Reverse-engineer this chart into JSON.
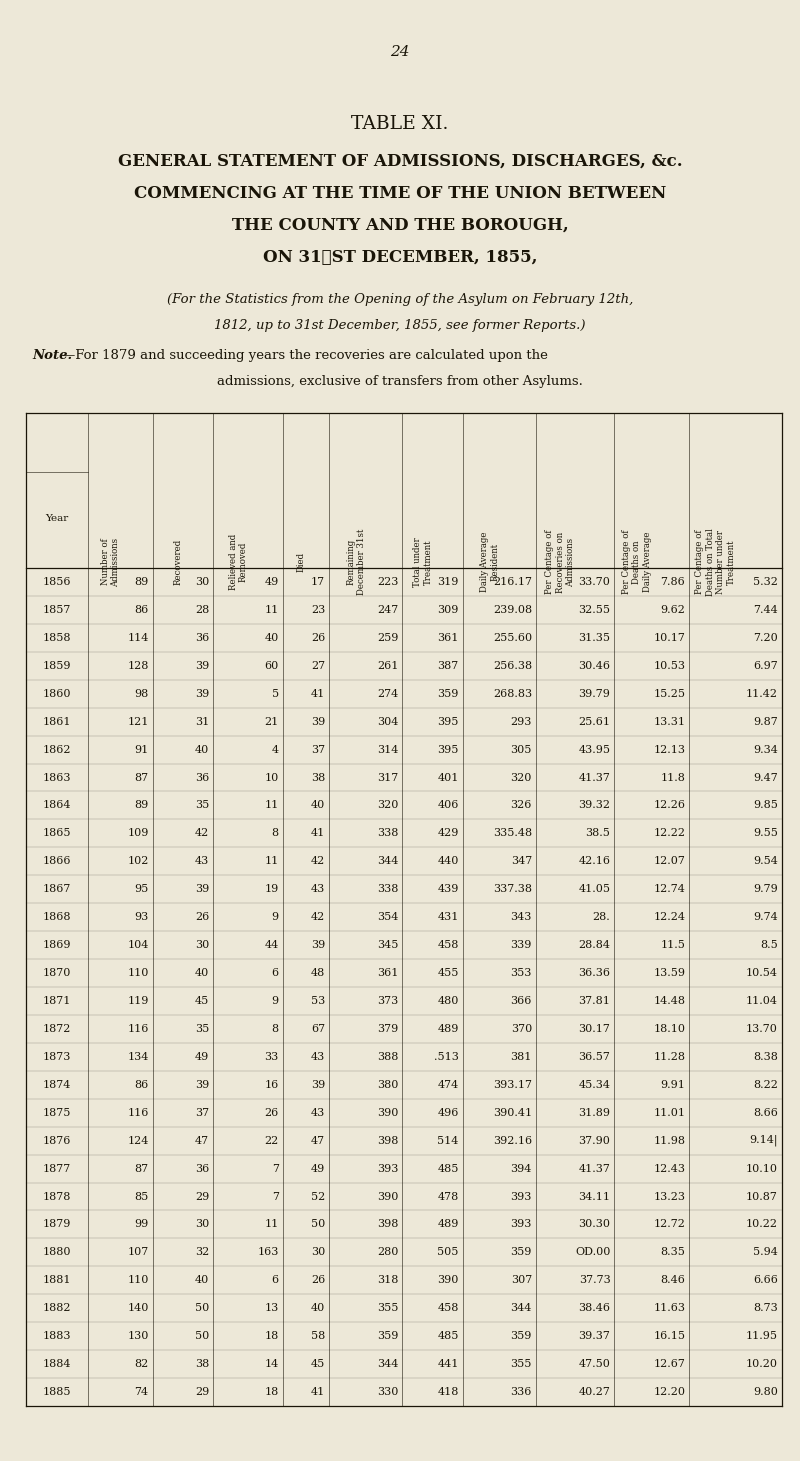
{
  "page_number": "24",
  "title_line1": "TABLE XI.",
  "title_line2": "GENERAL STATEMENT OF ADMISSIONS, DISCHARGES, &c.",
  "title_line3": "COMMENCING AT THE TIME OF THE UNION BETWEEN",
  "title_line4": "THE COUNTY AND THE BOROUGH,",
  "title_line5": "ON 31ᴹᴛ DECEMBER, 1855,",
  "note1": "(For the Statistics from the Opening of the Asylum on February 12th,",
  "note2": "1812, up to 31st December, 1855, see former Reports.)",
  "note3_bold": "Note.",
  "note3_rest": "—For 1879 and succeeding years the recoveries are calculated upon the",
  "note4": "admissions, exclusive of transfers from other Asylums.",
  "col_headers": [
    "Year",
    "Number of\nAdmissions",
    "Recovered",
    "Relieved and\nRemoved",
    "Died",
    "Remaining\nDecember 31st",
    "Total under\nTreatment",
    "Daily Average\nResident",
    "Per Centage of\nRecoveries on\nAdmissions",
    "Per Centage of\nDeaths on\nDaily Average",
    "Per Centage of\nDeaths on Total\nNumber under\nTreatment"
  ],
  "rows": [
    [
      "1856",
      "89",
      "30",
      "49",
      "17",
      "223",
      "319",
      "216.17",
      "33.70",
      "7.86",
      "5.32"
    ],
    [
      "1857",
      "86",
      "28",
      "11",
      "23",
      "247",
      "309",
      "239.08",
      "32.55",
      "9.62",
      "7.44"
    ],
    [
      "1858",
      "114",
      "36",
      "40",
      "26",
      "259",
      "361",
      "255.60",
      "31.35",
      "10.17",
      "7.20"
    ],
    [
      "1859",
      "128",
      "39",
      "60",
      "27",
      "261",
      "387",
      "256.38",
      "30.46",
      "10.53",
      "6.97"
    ],
    [
      "1860",
      "98",
      "39",
      "5",
      "41",
      "274",
      "359",
      "268.83",
      "39.79",
      "15.25",
      "11.42"
    ],
    [
      "1861",
      "121",
      "31",
      "21",
      "39",
      "304",
      "395",
      "293",
      "25.61",
      "13.31",
      "9.87"
    ],
    [
      "1862",
      "91",
      "40",
      "4",
      "37",
      "314",
      "395",
      "305",
      "43.95",
      "12.13",
      "9.34"
    ],
    [
      "1863",
      "87",
      "36",
      "10",
      "38",
      "317",
      "401",
      "320",
      "41.37",
      "11.8",
      "9.47"
    ],
    [
      "1864",
      "89",
      "35",
      "11",
      "40",
      "320",
      "406",
      "326",
      "39.32",
      "12.26",
      "9.85"
    ],
    [
      "1865",
      "109",
      "42",
      "8",
      "41",
      "338",
      "429",
      "335.48",
      "38.5",
      "12.22",
      "9.55"
    ],
    [
      "1866",
      "102",
      "43",
      "11",
      "42",
      "344",
      "440",
      "347",
      "42.16",
      "12.07",
      "9.54"
    ],
    [
      "1867",
      "95",
      "39",
      "19",
      "43",
      "338",
      "439",
      "337.38",
      "41.05",
      "12.74",
      "9.79"
    ],
    [
      "1868",
      "93",
      "26",
      "9",
      "42",
      "354",
      "431",
      "343",
      "28.",
      "12.24",
      "9.74"
    ],
    [
      "1869",
      "104",
      "30",
      "44",
      "39",
      "345",
      "458",
      "339",
      "28.84",
      "11.5",
      "8.5"
    ],
    [
      "1870",
      "110",
      "40",
      "6",
      "48",
      "361",
      "455",
      "353",
      "36.36",
      "13.59",
      "10.54"
    ],
    [
      "1871",
      "119",
      "45",
      "9",
      "53",
      "373",
      "480",
      "366",
      "37.81",
      "14.48",
      "11.04"
    ],
    [
      "1872",
      "116",
      "35",
      "8",
      "67",
      "379",
      "489",
      "370",
      "30.17",
      "18.10",
      "13.70"
    ],
    [
      "1873",
      "134",
      "49",
      "33",
      "43",
      "388",
      ".513",
      "381",
      "36.57",
      "11.28",
      "8.38"
    ],
    [
      "1874",
      "86",
      "39",
      "16",
      "39",
      "380",
      "474",
      "393.17",
      "45.34",
      "9.91",
      "8.22"
    ],
    [
      "1875",
      "116",
      "37",
      "26",
      "43",
      "390",
      "496",
      "390.41",
      "31.89",
      "11.01",
      "8.66"
    ],
    [
      "1876",
      "124",
      "47",
      "22",
      "47",
      "398",
      "514",
      "392.16",
      "37.90",
      "11.98",
      "9.14|"
    ],
    [
      "1877",
      "87",
      "36",
      "7",
      "49",
      "393",
      "485",
      "394",
      "41.37",
      "12.43",
      "10.10"
    ],
    [
      "1878",
      "85",
      "29",
      "7",
      "52",
      "390",
      "478",
      "393",
      "34.11",
      "13.23",
      "10.87"
    ],
    [
      "1879",
      "99",
      "30",
      "11",
      "50",
      "398",
      "489",
      "393",
      "30.30",
      "12.72",
      "10.22"
    ],
    [
      "1880",
      "107",
      "32",
      "163",
      "30",
      "280",
      "505",
      "359",
      "OD.00",
      "8.35",
      "5.94"
    ],
    [
      "1881",
      "110",
      "40",
      "6",
      "26",
      "318",
      "390",
      "307",
      "37.73",
      "8.46",
      "6.66"
    ],
    [
      "1882",
      "140",
      "50",
      "13",
      "40",
      "355",
      "458",
      "344",
      "38.46",
      "11.63",
      "8.73"
    ],
    [
      "1883",
      "130",
      "50",
      "18",
      "58",
      "359",
      "485",
      "359",
      "39.37",
      "16.15",
      "11.95"
    ],
    [
      "1884",
      "82",
      "38",
      "14",
      "45",
      "344",
      "441",
      "355",
      "47.50",
      "12.67",
      "10.20"
    ],
    [
      "1885",
      "74",
      "29",
      "18",
      "41",
      "330",
      "418",
      "336",
      "40.27",
      "12.20",
      "9.80"
    ]
  ],
  "bg_color": "#ede8d8",
  "text_color": "#1a1508",
  "line_color": "#1a1508",
  "fig_width": 8.0,
  "fig_height": 14.61,
  "dpi": 100
}
